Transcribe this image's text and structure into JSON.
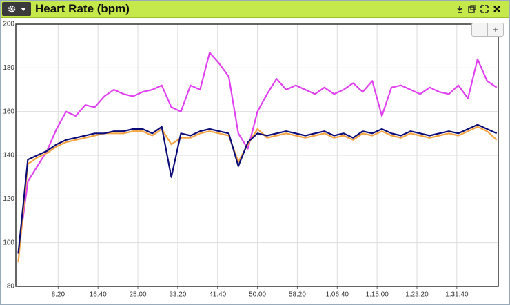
{
  "chart_data": {
    "type": "line",
    "title": "Heart Rate (bpm)",
    "x": [
      0,
      120,
      240,
      360,
      480,
      600,
      720,
      840,
      960,
      1080,
      1200,
      1320,
      1440,
      1560,
      1680,
      1800,
      1920,
      2040,
      2160,
      2280,
      2400,
      2520,
      2640,
      2760,
      2880,
      3000,
      3120,
      3240,
      3360,
      3480,
      3600,
      3720,
      3840,
      3960,
      4080,
      4200,
      4320,
      4440,
      4560,
      4680,
      4800,
      4920,
      5040,
      5160,
      5280,
      5400,
      5520,
      5640,
      5760,
      5880,
      6000
    ],
    "series": [
      {
        "color": "#e040f0",
        "values": [
          95,
          128,
          135,
          142,
          152,
          160,
          158,
          163,
          162,
          167,
          170,
          168,
          167,
          169,
          170,
          172,
          162,
          160,
          172,
          170,
          187,
          182,
          176,
          150,
          143,
          160,
          168,
          175,
          170,
          172,
          170,
          168,
          171,
          168,
          170,
          173,
          169,
          174,
          158,
          171,
          172,
          170,
          168,
          171,
          169,
          168,
          172,
          166,
          184,
          174,
          171
        ]
      },
      {
        "color": "#f4a340",
        "values": [
          91,
          136,
          139,
          141,
          144,
          146,
          147,
          148,
          149,
          150,
          150,
          150,
          151,
          151,
          149,
          152,
          145,
          148,
          148,
          150,
          151,
          150,
          149,
          137,
          145,
          152,
          148,
          149,
          150,
          149,
          148,
          149,
          150,
          148,
          149,
          147,
          150,
          149,
          151,
          149,
          148,
          150,
          149,
          148,
          149,
          150,
          149,
          151,
          153,
          151,
          147
        ]
      },
      {
        "color": "#0c0c78",
        "values": [
          95,
          138,
          140,
          142,
          145,
          147,
          148,
          149,
          150,
          150,
          151,
          151,
          152,
          152,
          150,
          153,
          130,
          150,
          149,
          151,
          152,
          151,
          150,
          135,
          146,
          150,
          149,
          150,
          151,
          150,
          149,
          150,
          151,
          149,
          150,
          148,
          151,
          150,
          152,
          150,
          149,
          151,
          150,
          149,
          150,
          151,
          150,
          152,
          154,
          152,
          150
        ]
      }
    ],
    "xlim": [
      -30,
      6020
    ],
    "xticks": [
      {
        "value": 500,
        "label": "8:20"
      },
      {
        "value": 1000,
        "label": "16:40"
      },
      {
        "value": 1500,
        "label": "25:00"
      },
      {
        "value": 2000,
        "label": "33:20"
      },
      {
        "value": 2500,
        "label": "41:40"
      },
      {
        "value": 3000,
        "label": "50:00"
      },
      {
        "value": 3500,
        "label": "58:20"
      },
      {
        "value": 4000,
        "label": "1:06:40"
      },
      {
        "value": 4500,
        "label": "1:15:00"
      },
      {
        "value": 5000,
        "label": "1:23:20"
      },
      {
        "value": 5500,
        "label": "1:31:40"
      }
    ],
    "ylim": [
      80,
      200
    ],
    "yticks": [
      80,
      100,
      120,
      140,
      160,
      180,
      200
    ],
    "grid": true
  },
  "zoom_buttons": [
    "-",
    "+"
  ]
}
